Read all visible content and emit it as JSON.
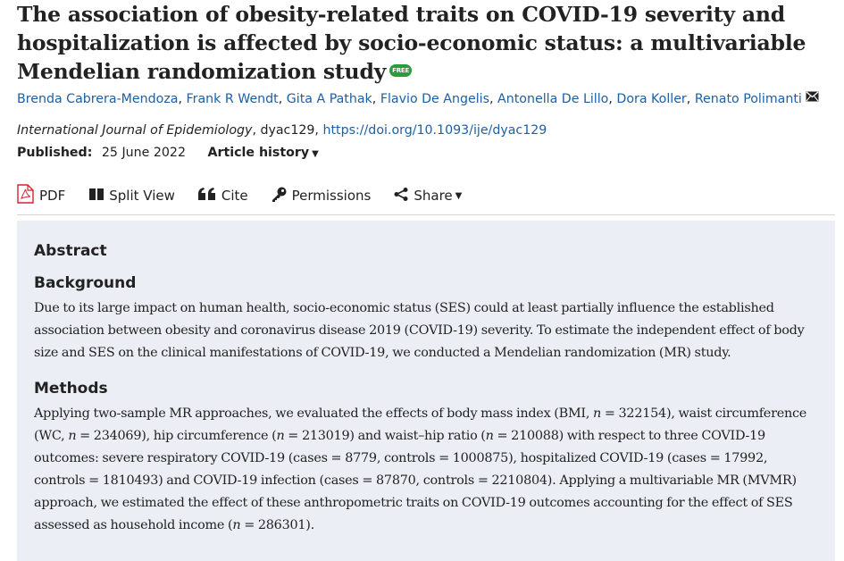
{
  "article": {
    "title": "The association of obesity-related traits on COVID-19 severity and hospitalization is affected by socio-economic status: a multivariable Mendelian randomization study",
    "free_badge": "FREE",
    "authors": [
      "Brenda Cabrera-Mendoza",
      "Frank R Wendt",
      "Gita A Pathak",
      "Flavio De Angelis",
      "Antonella De Lillo",
      "Dora Koller",
      "Renato Polimanti"
    ],
    "journal_name": "International Journal of Epidemiology",
    "article_id": ", dyac129, ",
    "doi": "https://doi.org/10.1093/ije/dyac129",
    "published_label": "Published:",
    "published_date": "25 June 2022",
    "article_history": "Article history"
  },
  "toolbar": {
    "pdf": "PDF",
    "split_view": "Split View",
    "cite": "Cite",
    "permissions": "Permissions",
    "share": "Share"
  },
  "abstract": {
    "heading": "Abstract",
    "background_heading": "Background",
    "background_text": "Due to its large impact on human health, socio-economic status (SES) could at least partially influence the established association between obesity and coronavirus disease 2019 (COVID-19) severity. To estimate the independent effect of body size and SES on the clinical manifestations of COVID-19, we conducted a Mendelian randomization (MR) study.",
    "methods_heading": "Methods",
    "methods_parts": [
      "Applying two-sample MR approaches, we evaluated the effects of body mass index (BMI, ",
      "n",
      " = 322154), waist circumference (WC, ",
      "n",
      " = 234069), hip circumference (",
      "n",
      " = 213019) and waist–hip ratio (",
      "n",
      " = 210088) with respect to three COVID-19 outcomes: severe respiratory COVID-19 (cases = 8779, controls = 1000875), hospitalized COVID-19 (cases = 17992, controls = 1810493) and COVID-19 infection (cases = 87870, controls = 2210804). Applying a multivariable MR (MVMR) approach, we estimated the effect of these anthropometric traits on COVID-19 outcomes accounting for the effect of SES assessed as household income (",
      "n",
      " = 286301)."
    ]
  },
  "colors": {
    "link": "#1d5fa5",
    "free_badge": "#2a9d3a",
    "pdf_icon": "#d2232a",
    "abstract_bg": "#eceef6"
  },
  "icons": {
    "free": "free-badge",
    "mail": "envelope-icon",
    "pdf": "pdf-file-icon",
    "split": "split-view-icon",
    "cite": "quote-icon",
    "permissions": "key-icon",
    "share": "share-icon"
  }
}
